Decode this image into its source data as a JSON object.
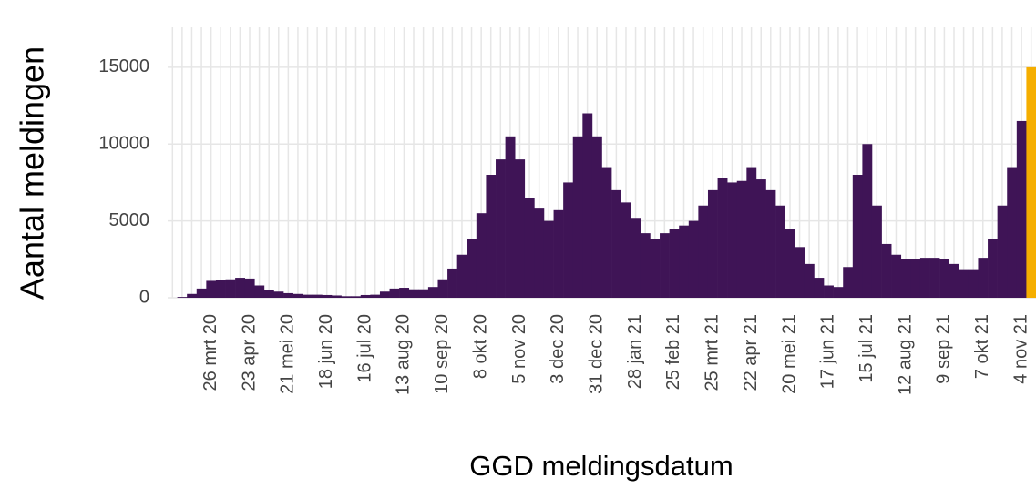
{
  "chart_data": {
    "type": "bar",
    "x_label": "GGD meldingsdatum",
    "y_label": "Aantal meldingen",
    "categories": [
      null,
      null,
      null,
      null,
      "26 mrt 20",
      null,
      null,
      null,
      "23 apr 20",
      null,
      null,
      null,
      "21 mei 20",
      null,
      null,
      null,
      "18 jun 20",
      null,
      null,
      null,
      "16 jul 20",
      null,
      null,
      null,
      "13 aug 20",
      null,
      null,
      null,
      "10 sep 20",
      null,
      null,
      null,
      "8 okt 20",
      null,
      null,
      null,
      "5 nov 20",
      null,
      null,
      null,
      "3 dec 20",
      null,
      null,
      null,
      "31 dec 20",
      null,
      null,
      null,
      "28 jan 21",
      null,
      null,
      null,
      "25 feb 21",
      null,
      null,
      null,
      "25 mrt 21",
      null,
      null,
      null,
      "22 apr 21",
      null,
      null,
      null,
      "20 mei 21",
      null,
      null,
      null,
      "17 jun 21",
      null,
      null,
      null,
      "15 jul 21",
      null,
      null,
      null,
      "12 aug 21",
      null,
      null,
      null,
      "9 sep 21",
      null,
      null,
      null,
      "7 okt 21",
      null,
      null,
      null,
      "4 nov 21",
      null
    ],
    "values": [
      0,
      50,
      250,
      600,
      1100,
      1150,
      1200,
      1300,
      1250,
      800,
      500,
      400,
      300,
      250,
      200,
      200,
      180,
      150,
      100,
      100,
      180,
      200,
      400,
      600,
      650,
      550,
      550,
      700,
      1200,
      1900,
      2800,
      3800,
      5500,
      8000,
      9000,
      10500,
      9000,
      6500,
      5800,
      5000,
      5700,
      7500,
      10500,
      12000,
      10500,
      8500,
      7000,
      6200,
      5200,
      4200,
      3800,
      4200,
      4500,
      4700,
      5000,
      6000,
      7000,
      7800,
      7500,
      7600,
      8500,
      7700,
      7000,
      6000,
      4500,
      3300,
      2200,
      1300,
      800,
      700,
      2000,
      8000,
      10000,
      6000,
      3500,
      2800,
      2500,
      2500,
      2600,
      2600,
      2500,
      2200,
      1800,
      1800,
      2600,
      3800,
      6000,
      8500,
      11500,
      15000
    ],
    "colors": [
      "#3f1456",
      "#3f1456",
      "#3f1456",
      "#3f1456",
      "#3f1456",
      "#3f1456",
      "#3f1456",
      "#3f1456",
      "#3f1456",
      "#3f1456",
      "#3f1456",
      "#3f1456",
      "#3f1456",
      "#3f1456",
      "#3f1456",
      "#3f1456",
      "#3f1456",
      "#3f1456",
      "#3f1456",
      "#3f1456",
      "#3f1456",
      "#3f1456",
      "#3f1456",
      "#3f1456",
      "#3f1456",
      "#3f1456",
      "#3f1456",
      "#3f1456",
      "#3f1456",
      "#3f1456",
      "#3f1456",
      "#3f1456",
      "#3f1456",
      "#3f1456",
      "#3f1456",
      "#3f1456",
      "#3f1456",
      "#3f1456",
      "#3f1456",
      "#3f1456",
      "#3f1456",
      "#3f1456",
      "#3f1456",
      "#3f1456",
      "#3f1456",
      "#3f1456",
      "#3f1456",
      "#3f1456",
      "#3f1456",
      "#3f1456",
      "#3f1456",
      "#3f1456",
      "#3f1456",
      "#3f1456",
      "#3f1456",
      "#3f1456",
      "#3f1456",
      "#3f1456",
      "#3f1456",
      "#3f1456",
      "#3f1456",
      "#3f1456",
      "#3f1456",
      "#3f1456",
      "#3f1456",
      "#3f1456",
      "#3f1456",
      "#3f1456",
      "#3f1456",
      "#3f1456",
      "#3f1456",
      "#3f1456",
      "#3f1456",
      "#3f1456",
      "#3f1456",
      "#3f1456",
      "#3f1456",
      "#3f1456",
      "#3f1456",
      "#3f1456",
      "#3f1456",
      "#3f1456",
      "#3f1456",
      "#3f1456",
      "#3f1456",
      "#3f1456",
      "#3f1456",
      "#3f1456",
      "#3f1456",
      "#f5ae00"
    ],
    "ylim": [
      0,
      17600
    ],
    "yticks": [
      0,
      5000,
      10000,
      15000
    ],
    "grid": true
  }
}
